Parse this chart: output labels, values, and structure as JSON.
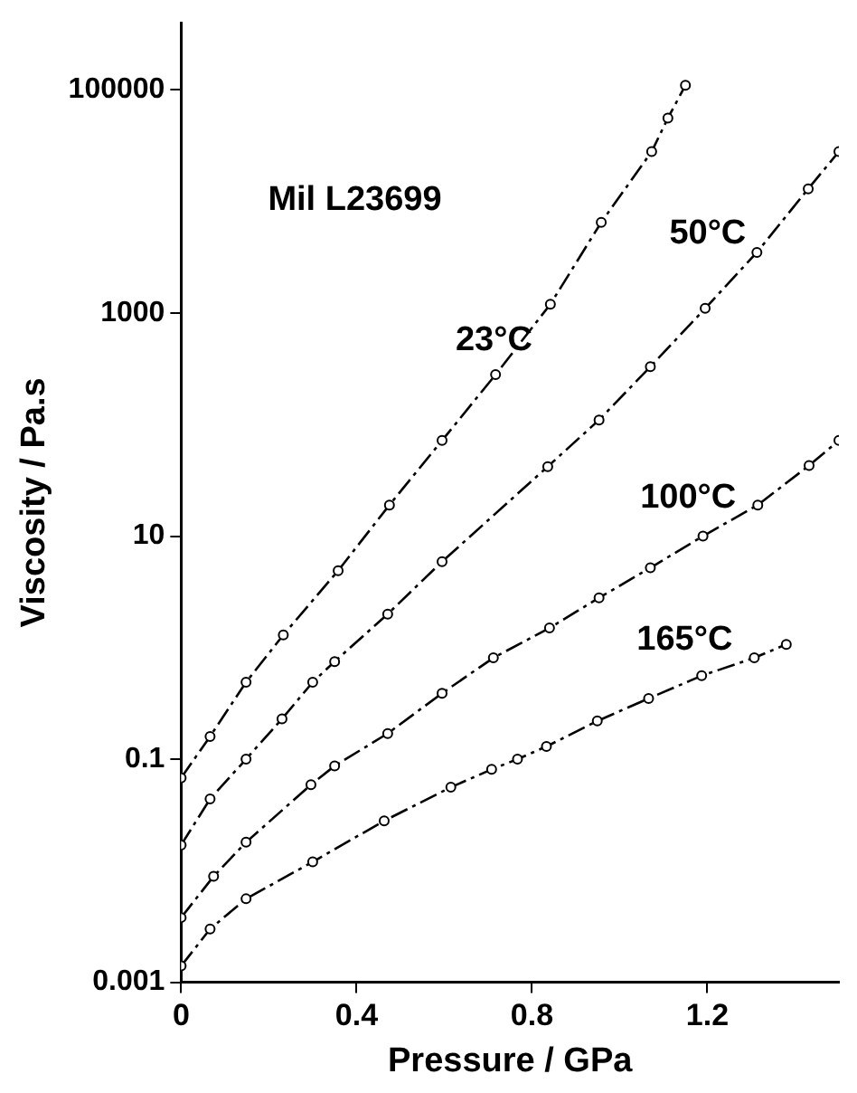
{
  "chart_data": {
    "type": "line",
    "xlabel": "Pressure / GPa",
    "ylabel": "Viscosity / Pa.s",
    "annotations": [
      "Mil L23699"
    ],
    "log": "y",
    "xlim": [
      0,
      1.5
    ],
    "xticks": [
      0,
      0.4,
      0.8,
      1.2
    ],
    "ylim": [
      0.001,
      400000
    ],
    "yticks": [
      0.001,
      0.1,
      10,
      1000,
      100000
    ],
    "grid": false,
    "legend": false,
    "marker": "circle",
    "line_style": "dashed",
    "series": [
      {
        "name": "23°C",
        "color": "#000000",
        "x": [
          0,
          0.066,
          0.148,
          0.233,
          0.358,
          0.475,
          0.595,
          0.717,
          0.842,
          0.958,
          1.073,
          1.11,
          1.15
        ],
        "values": [
          0.068,
          0.16,
          0.49,
          1.3,
          4.9,
          19,
          72,
          280,
          1200,
          6500,
          28000,
          56000,
          110000
        ]
      },
      {
        "name": "50°C",
        "color": "#000000",
        "x": [
          0,
          0.066,
          0.148,
          0.23,
          0.3,
          0.35,
          0.471,
          0.595,
          0.836,
          0.953,
          1.07,
          1.195,
          1.313,
          1.43,
          1.5
        ],
        "values": [
          0.017,
          0.044,
          0.1,
          0.23,
          0.49,
          0.75,
          2.0,
          5.9,
          42,
          110,
          330,
          1100,
          3500,
          13000,
          28000
        ]
      },
      {
        "name": "100°C",
        "color": "#000000",
        "x": [
          0,
          0.074,
          0.148,
          0.296,
          0.35,
          0.471,
          0.595,
          0.712,
          0.84,
          0.953,
          1.07,
          1.19,
          1.315,
          1.432,
          1.5
        ],
        "values": [
          0.0038,
          0.0089,
          0.018,
          0.059,
          0.087,
          0.17,
          0.39,
          0.81,
          1.5,
          2.8,
          5.2,
          10,
          19,
          43,
          72
        ]
      },
      {
        "name": "165°C",
        "color": "#000000",
        "x": [
          0,
          0.066,
          0.148,
          0.3,
          0.463,
          0.615,
          0.708,
          0.767,
          0.833,
          0.949,
          1.066,
          1.187,
          1.307,
          1.38
        ],
        "values": [
          0.0014,
          0.003,
          0.0056,
          0.012,
          0.028,
          0.056,
          0.081,
          0.1,
          0.13,
          0.22,
          0.35,
          0.56,
          0.81,
          1.07
        ]
      }
    ]
  }
}
